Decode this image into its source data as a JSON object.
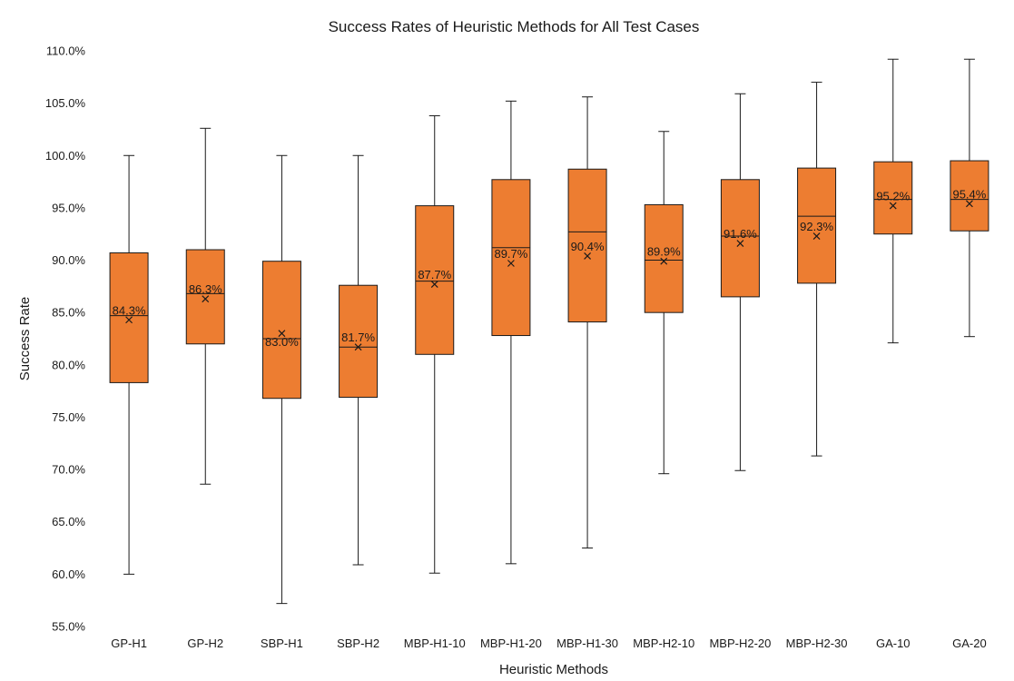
{
  "chart_data": {
    "type": "boxplot",
    "title": "Success Rates of Heuristic Methods for All Test Cases",
    "xlabel": "Heuristic Methods",
    "ylabel": "Success Rate",
    "ylim": [
      55,
      110
    ],
    "ytick_step": 5,
    "ytick_labels": [
      "55.0%",
      "60.0%",
      "65.0%",
      "70.0%",
      "75.0%",
      "80.0%",
      "85.0%",
      "90.0%",
      "95.0%",
      "100.0%",
      "105.0%",
      "110.0%"
    ],
    "box_color": "#ED7D31",
    "line_color": "#1a1a1a",
    "grid": false,
    "series": [
      {
        "category": "GP-H1",
        "min": 60.0,
        "q1": 78.3,
        "median": 84.7,
        "q3": 90.7,
        "max": 100.0,
        "mean": 84.3,
        "mean_label": "84.3%"
      },
      {
        "category": "GP-H2",
        "min": 68.6,
        "q1": 82.0,
        "median": 86.8,
        "q3": 91.0,
        "max": 102.6,
        "mean": 86.3,
        "mean_label": "86.3%"
      },
      {
        "category": "SBP-H1",
        "min": 57.2,
        "q1": 76.8,
        "median": 82.5,
        "q3": 89.9,
        "max": 100.0,
        "mean": 83.0,
        "mean_label": "83.0%"
      },
      {
        "category": "SBP-H2",
        "min": 60.9,
        "q1": 76.9,
        "median": 81.7,
        "q3": 87.6,
        "max": 100.0,
        "mean": 81.7,
        "mean_label": "81.7%"
      },
      {
        "category": "MBP-H1-10",
        "min": 60.1,
        "q1": 81.0,
        "median": 88.0,
        "q3": 95.2,
        "max": 103.8,
        "mean": 87.7,
        "mean_label": "87.7%"
      },
      {
        "category": "MBP-H1-20",
        "min": 61.0,
        "q1": 82.8,
        "median": 91.2,
        "q3": 97.7,
        "max": 105.2,
        "mean": 89.7,
        "mean_label": "89.7%"
      },
      {
        "category": "MBP-H1-30",
        "min": 62.5,
        "q1": 84.1,
        "median": 92.7,
        "q3": 98.7,
        "max": 105.6,
        "mean": 90.4,
        "mean_label": "90.4%"
      },
      {
        "category": "MBP-H2-10",
        "min": 69.6,
        "q1": 85.0,
        "median": 90.0,
        "q3": 95.3,
        "max": 102.3,
        "mean": 89.9,
        "mean_label": "89.9%"
      },
      {
        "category": "MBP-H2-20",
        "min": 69.9,
        "q1": 86.5,
        "median": 92.3,
        "q3": 97.7,
        "max": 105.9,
        "mean": 91.6,
        "mean_label": "91.6%"
      },
      {
        "category": "MBP-H2-30",
        "min": 71.3,
        "q1": 87.8,
        "median": 94.2,
        "q3": 98.8,
        "max": 107.0,
        "mean": 92.3,
        "mean_label": "92.3%"
      },
      {
        "category": "GA-10",
        "min": 82.1,
        "q1": 92.5,
        "median": 95.8,
        "q3": 99.4,
        "max": 109.2,
        "mean": 95.2,
        "mean_label": "95.2%"
      },
      {
        "category": "GA-20",
        "min": 82.7,
        "q1": 92.8,
        "median": 95.8,
        "q3": 99.5,
        "max": 109.2,
        "mean": 95.4,
        "mean_label": "95.4%"
      }
    ]
  }
}
